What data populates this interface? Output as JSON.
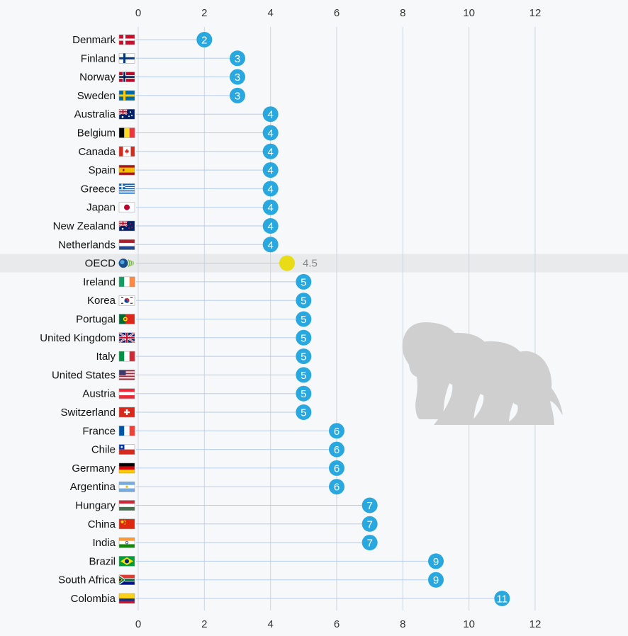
{
  "chart_data": {
    "type": "scatter",
    "orientation": "horizontal",
    "xlim": [
      0,
      12
    ],
    "x_ticks": [
      0,
      2,
      4,
      6,
      8,
      10,
      12
    ],
    "grid": "vertical",
    "axis_labels_position": "top-and-bottom",
    "marker_color": "#29a8e0",
    "highlight_color": "#e8dc16",
    "highlight_band_color": "#e8eaec",
    "categories": [
      {
        "label": "Denmark",
        "value": 2,
        "flag": "denmark-flag"
      },
      {
        "label": "Finland",
        "value": 3,
        "flag": "finland-flag"
      },
      {
        "label": "Norway",
        "value": 3,
        "flag": "norway-flag"
      },
      {
        "label": "Sweden",
        "value": 3,
        "flag": "sweden-flag"
      },
      {
        "label": "Australia",
        "value": 4,
        "flag": "australia-flag"
      },
      {
        "label": "Belgium",
        "value": 4,
        "flag": "belgium-flag"
      },
      {
        "label": "Canada",
        "value": 4,
        "flag": "canada-flag"
      },
      {
        "label": "Spain",
        "value": 4,
        "flag": "spain-flag"
      },
      {
        "label": "Greece",
        "value": 4,
        "flag": "greece-flag"
      },
      {
        "label": "Japan",
        "value": 4,
        "flag": "japan-flag"
      },
      {
        "label": "New Zealand",
        "value": 4,
        "flag": "new-zealand-flag"
      },
      {
        "label": "Netherlands",
        "value": 4,
        "flag": "netherlands-flag"
      },
      {
        "label": "OECD",
        "value": 4.5,
        "flag": "oecd-logo",
        "highlight": true
      },
      {
        "label": "Ireland",
        "value": 5,
        "flag": "ireland-flag"
      },
      {
        "label": "Korea",
        "value": 5,
        "flag": "korea-flag"
      },
      {
        "label": "Portugal",
        "value": 5,
        "flag": "portugal-flag"
      },
      {
        "label": "United Kingdom",
        "value": 5,
        "flag": "united-kingdom-flag"
      },
      {
        "label": "Italy",
        "value": 5,
        "flag": "italy-flag"
      },
      {
        "label": "United States",
        "value": 5,
        "flag": "united-states-flag"
      },
      {
        "label": "Austria",
        "value": 5,
        "flag": "austria-flag"
      },
      {
        "label": "Switzerland",
        "value": 5,
        "flag": "switzerland-flag"
      },
      {
        "label": "France",
        "value": 6,
        "flag": "france-flag"
      },
      {
        "label": "Chile",
        "value": 6,
        "flag": "chile-flag"
      },
      {
        "label": "Germany",
        "value": 6,
        "flag": "germany-flag"
      },
      {
        "label": "Argentina",
        "value": 6,
        "flag": "argentina-flag"
      },
      {
        "label": "Hungary",
        "value": 7,
        "flag": "hungary-flag"
      },
      {
        "label": "China",
        "value": 7,
        "flag": "china-flag"
      },
      {
        "label": "India",
        "value": 7,
        "flag": "india-flag"
      },
      {
        "label": "Brazil",
        "value": 9,
        "flag": "brazil-flag"
      },
      {
        "label": "South Africa",
        "value": 9,
        "flag": "south-africa-flag"
      },
      {
        "label": "Colombia",
        "value": 11,
        "flag": "colombia-flag"
      }
    ],
    "decoration": "family-silhouette-icon"
  }
}
